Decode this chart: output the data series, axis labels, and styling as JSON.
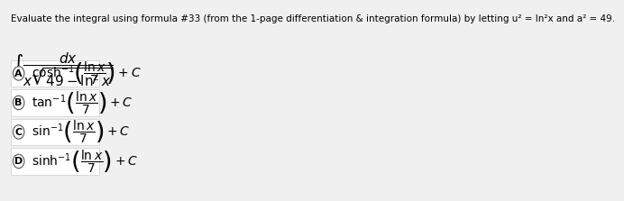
{
  "title": "Evaluate the integral using formula #33 (from the 1-page differentiation & integration formula) by letting u² = ln²x and a² = 49.",
  "integral_display": "$\\int \\dfrac{dx}{x\\sqrt{49 - \\ln^2 x}}$",
  "options": [
    {
      "label": "A",
      "text": "$\\cosh^{-1}\\left(\\dfrac{\\ln x}{7}\\right) + C$"
    },
    {
      "label": "B",
      "text": "$\\tan^{-1}\\left(\\dfrac{\\ln x}{7}\\right) + C$"
    },
    {
      "label": "C",
      "text": "$\\sin^{-1}\\left(\\dfrac{\\ln x}{7}\\right) + C$"
    },
    {
      "label": "D",
      "text": "$\\sinh^{-1}\\left(\\dfrac{\\ln x}{7}\\right) + C$"
    }
  ],
  "background_color": "#f0f0f0",
  "box_color": "#ffffff",
  "circle_color": "#ffffff",
  "text_color": "#000000",
  "title_fontsize": 7.5,
  "option_fontsize": 10,
  "integral_fontsize": 11
}
